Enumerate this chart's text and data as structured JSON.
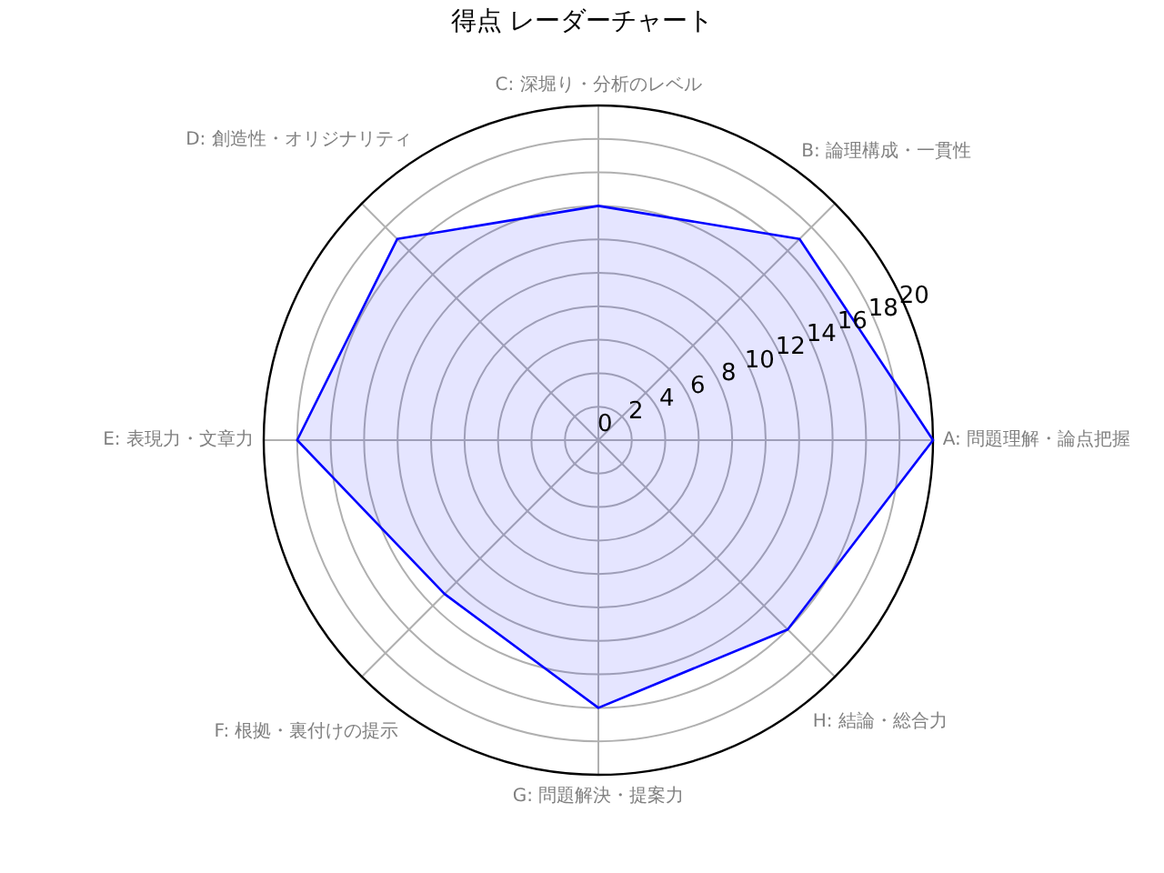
{
  "chart_data": {
    "type": "radar",
    "title": "得点 レーダーチャート",
    "categories": [
      "C: 深堀り・分析のレベル",
      "B: 論理構成・一貫性",
      "A: 問題理解・論点把握",
      "H: 結論・総合力",
      "G: 問題解決・提案力",
      "F: 根拠・裏付けの提示",
      "E: 表現力・文章力",
      "D: 創造性・オリジナリティ"
    ],
    "series": [
      {
        "color": "#0000ff",
        "values": [
          14,
          17,
          20,
          16,
          16,
          13,
          18,
          17
        ]
      }
    ],
    "ylim": [
      0,
      20
    ],
    "yticks": [
      0,
      2,
      4,
      6,
      8,
      10,
      12,
      14,
      16,
      18,
      20
    ],
    "grid": true
  }
}
